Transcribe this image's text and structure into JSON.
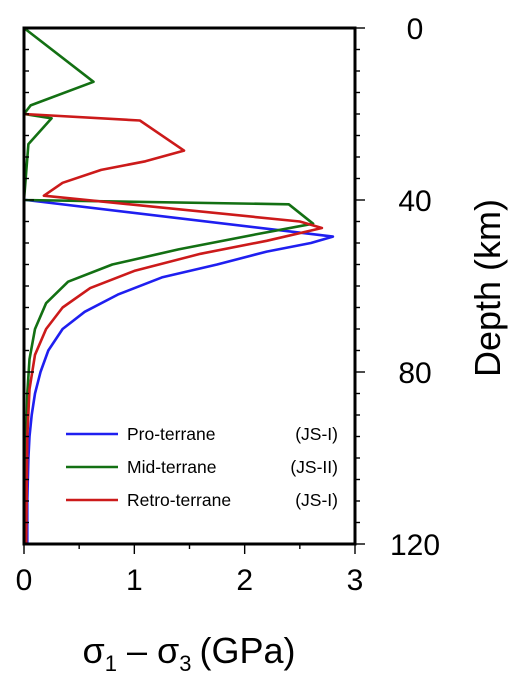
{
  "chart_data": {
    "type": "line",
    "orientation": "profile",
    "xlabel": "σ1 − σ3 (GPa)",
    "xlabel_parts": {
      "sym": "σ",
      "sub1": "1",
      "dash": "–",
      "sub3": "3",
      "unit": "(GPa)"
    },
    "ylabel": "Depth (km)",
    "xlim": [
      0,
      3
    ],
    "ylim": [
      0,
      120
    ],
    "y_inverted": true,
    "x_ticks": [
      0,
      1,
      2,
      3
    ],
    "x_tick_labels": [
      "0",
      "1",
      "2",
      "3"
    ],
    "y_ticks": [
      0,
      40,
      80,
      120
    ],
    "y_tick_labels": [
      "0",
      "40",
      "80",
      "120"
    ],
    "y_axis_side": "right",
    "grid": false,
    "legend_position": "bottom-right",
    "series": [
      {
        "name": "Pro-terrane",
        "tag": "(JS-I)",
        "color": "#1f1ff0",
        "points": [
          [
            0.03,
            120
          ],
          [
            0.03,
            110
          ],
          [
            0.04,
            100
          ],
          [
            0.05,
            95
          ],
          [
            0.07,
            90
          ],
          [
            0.1,
            85
          ],
          [
            0.15,
            80
          ],
          [
            0.22,
            75
          ],
          [
            0.35,
            70
          ],
          [
            0.55,
            66
          ],
          [
            0.85,
            62
          ],
          [
            1.25,
            58
          ],
          [
            1.75,
            55
          ],
          [
            2.2,
            52
          ],
          [
            2.6,
            50
          ],
          [
            2.8,
            48.5
          ],
          [
            0.02,
            40
          ]
        ]
      },
      {
        "name": "Mid-terrane",
        "tag": "(JS-II)",
        "color": "#137013",
        "points": [
          [
            0.0,
            0
          ],
          [
            0.63,
            12.5
          ],
          [
            0.06,
            18
          ],
          [
            0.0,
            20
          ],
          [
            0.25,
            21
          ],
          [
            0.04,
            27
          ],
          [
            0.0,
            40
          ],
          [
            2.4,
            41
          ],
          [
            2.62,
            45.5
          ],
          [
            2.1,
            48
          ],
          [
            1.4,
            51.5
          ],
          [
            0.8,
            55
          ],
          [
            0.4,
            59
          ],
          [
            0.2,
            64
          ],
          [
            0.1,
            70
          ],
          [
            0.05,
            77
          ],
          [
            0.03,
            85
          ],
          [
            0.02,
            100
          ],
          [
            0.02,
            120
          ]
        ]
      },
      {
        "name": "Retro-terrane",
        "tag": "(JS-I)",
        "color": "#cc1a1a",
        "points": [
          [
            0.0,
            20
          ],
          [
            1.05,
            21.5
          ],
          [
            1.45,
            28.5
          ],
          [
            1.1,
            31
          ],
          [
            0.7,
            33
          ],
          [
            0.35,
            36
          ],
          [
            0.18,
            39
          ],
          [
            2.5,
            45
          ],
          [
            2.7,
            46.5
          ],
          [
            2.2,
            49.5
          ],
          [
            1.6,
            52.5
          ],
          [
            1.0,
            56.5
          ],
          [
            0.6,
            60.5
          ],
          [
            0.35,
            65
          ],
          [
            0.2,
            70
          ],
          [
            0.1,
            76
          ],
          [
            0.05,
            84
          ],
          [
            0.03,
            95
          ],
          [
            0.02,
            120
          ]
        ]
      }
    ]
  }
}
